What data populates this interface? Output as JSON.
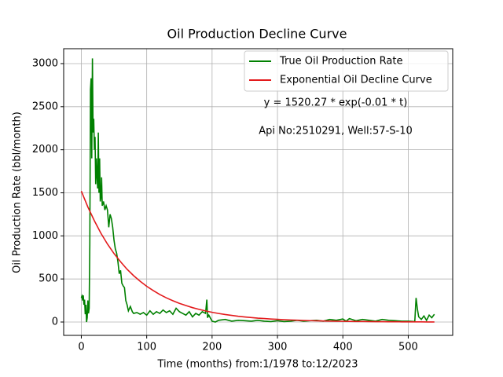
{
  "chart_data": {
    "type": "line",
    "title": "Oil Production Decline Curve",
    "xlabel": "Time (months) from:1/1978 to:12/2023",
    "ylabel": "Oil Production Rate (bbl/month)",
    "annotations": [
      "y = 1520.27 * exp(-0.01 * t)",
      "Api No:2510291, Well:57-S-10"
    ],
    "xlim": [
      -27,
      568
    ],
    "ylim": [
      -155,
      3173
    ],
    "xticks": [
      0,
      100,
      200,
      300,
      400,
      500
    ],
    "yticks": [
      0,
      500,
      1000,
      1500,
      2000,
      2500,
      3000
    ],
    "grid": true,
    "legend": "upper right",
    "series": [
      {
        "name": "True Oil Production Rate",
        "color": "#008000",
        "x": [
          0,
          1,
          2,
          3,
          4,
          5,
          6,
          7,
          8,
          9,
          10,
          11,
          12,
          13,
          14,
          15,
          16,
          17,
          18,
          19,
          20,
          21,
          22,
          23,
          24,
          25,
          26,
          27,
          28,
          29,
          30,
          31,
          32,
          34,
          36,
          38,
          40,
          42,
          44,
          46,
          48,
          50,
          52,
          54,
          56,
          58,
          60,
          62,
          64,
          66,
          68,
          70,
          72,
          75,
          78,
          80,
          85,
          90,
          95,
          100,
          105,
          110,
          115,
          120,
          125,
          130,
          135,
          140,
          145,
          150,
          155,
          160,
          165,
          170,
          175,
          180,
          185,
          190,
          192,
          193,
          195,
          200,
          205,
          210,
          220,
          230,
          240,
          250,
          260,
          270,
          280,
          290,
          300,
          310,
          320,
          330,
          340,
          350,
          360,
          370,
          380,
          390,
          400,
          405,
          410,
          420,
          430,
          440,
          450,
          460,
          470,
          480,
          490,
          500,
          510,
          512,
          514,
          516,
          520,
          524,
          528,
          532,
          536,
          540
        ],
        "values": [
          280,
          300,
          250,
          310,
          200,
          260,
          90,
          200,
          0,
          50,
          250,
          100,
          160,
          900,
          2700,
          2830,
          1900,
          3060,
          2200,
          2360,
          2000,
          2150,
          1600,
          1900,
          1700,
          1550,
          2200,
          1500,
          1900,
          1400,
          1450,
          1680,
          1350,
          1400,
          1300,
          1350,
          1300,
          1100,
          1250,
          1200,
          1100,
          950,
          850,
          800,
          700,
          560,
          600,
          450,
          420,
          400,
          250,
          200,
          130,
          180,
          120,
          100,
          110,
          90,
          110,
          80,
          130,
          90,
          120,
          100,
          140,
          110,
          130,
          90,
          160,
          120,
          100,
          80,
          120,
          60,
          100,
          80,
          120,
          100,
          260,
          50,
          80,
          10,
          0,
          20,
          30,
          10,
          20,
          15,
          10,
          20,
          10,
          5,
          15,
          5,
          10,
          20,
          10,
          15,
          20,
          10,
          30,
          20,
          35,
          10,
          40,
          15,
          30,
          20,
          10,
          30,
          20,
          15,
          10,
          10,
          5,
          280,
          150,
          60,
          30,
          70,
          20,
          80,
          50,
          90
        ]
      },
      {
        "name": "Exponential Oil Decline Curve",
        "color": "#e31a1c",
        "x": [
          0,
          10,
          20,
          30,
          40,
          50,
          60,
          70,
          80,
          90,
          100,
          110,
          120,
          130,
          140,
          150,
          160,
          170,
          180,
          190,
          200,
          210,
          220,
          230,
          240,
          250,
          260,
          270,
          280,
          290,
          300,
          310,
          320,
          330,
          340,
          350,
          360,
          370,
          380,
          390,
          400,
          410,
          420,
          430,
          440,
          450,
          460,
          470,
          480,
          490,
          500,
          510,
          520,
          530,
          540
        ],
        "values": [
          1520,
          1335,
          1175,
          1030,
          905,
          795,
          700,
          612,
          538,
          473,
          415,
          365,
          320,
          281,
          247,
          217,
          191,
          167,
          147,
          129,
          113,
          99,
          87,
          77,
          67,
          59,
          52,
          45,
          40,
          35,
          31,
          27,
          24,
          21,
          18,
          16,
          14,
          12,
          11,
          10,
          8,
          7,
          6,
          6,
          5,
          4,
          4,
          3,
          3,
          2,
          2,
          2,
          2,
          1,
          1
        ]
      }
    ]
  }
}
